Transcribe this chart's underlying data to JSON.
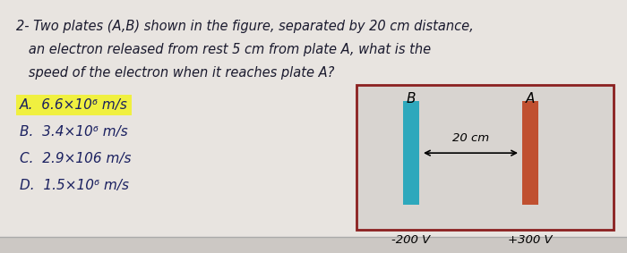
{
  "bg_color": "#ccc8c4",
  "paper_color": "#e8e4e0",
  "options": [
    {
      "label": "A.  6.6×10⁶ m/s",
      "highlight": true
    },
    {
      "label": "B.  3.4×10⁶ m/s",
      "highlight": false
    },
    {
      "label": "C.  2.9×106 m/s",
      "highlight": false
    },
    {
      "label": "D.  1.5×10⁶ m/s",
      "highlight": false
    }
  ],
  "line1": "2- Two plates (A,B) shown in the figure, separated by 20 cm distance,",
  "line2": "   an electron released from rest 5 cm from plate A, what is the",
  "line3": "   speed of the electron when it reaches plate A?",
  "plate_b_color": "#2ea8bc",
  "plate_a_color": "#c05030",
  "box_border_color": "#8b2020",
  "box_fill": "#d8d4d0",
  "voltage_neg": "-200 V",
  "voltage_pos": "+300 V",
  "plate_b_label": "B",
  "plate_a_label": "A",
  "dist_label": "20 cm",
  "highlight_color": "#f0f040",
  "text_color": "#1a1a2e",
  "option_color": "#1a2060"
}
